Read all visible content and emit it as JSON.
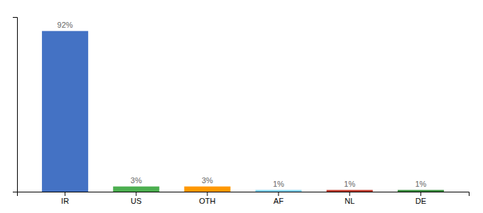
{
  "chart_data": {
    "type": "bar",
    "categories": [
      "IR",
      "US",
      "OTH",
      "AF",
      "NL",
      "DE"
    ],
    "values": [
      92,
      3,
      3,
      1,
      1,
      1
    ],
    "value_labels": [
      "92%",
      "3%",
      "3%",
      "1%",
      "1%",
      "1%"
    ],
    "colors": [
      "#4472C4",
      "#4CAF50",
      "#FF9800",
      "#81D4FA",
      "#C0392B",
      "#388E3C"
    ],
    "ylim": [
      0,
      100
    ],
    "data_labels": true,
    "tick_labels": "x"
  }
}
